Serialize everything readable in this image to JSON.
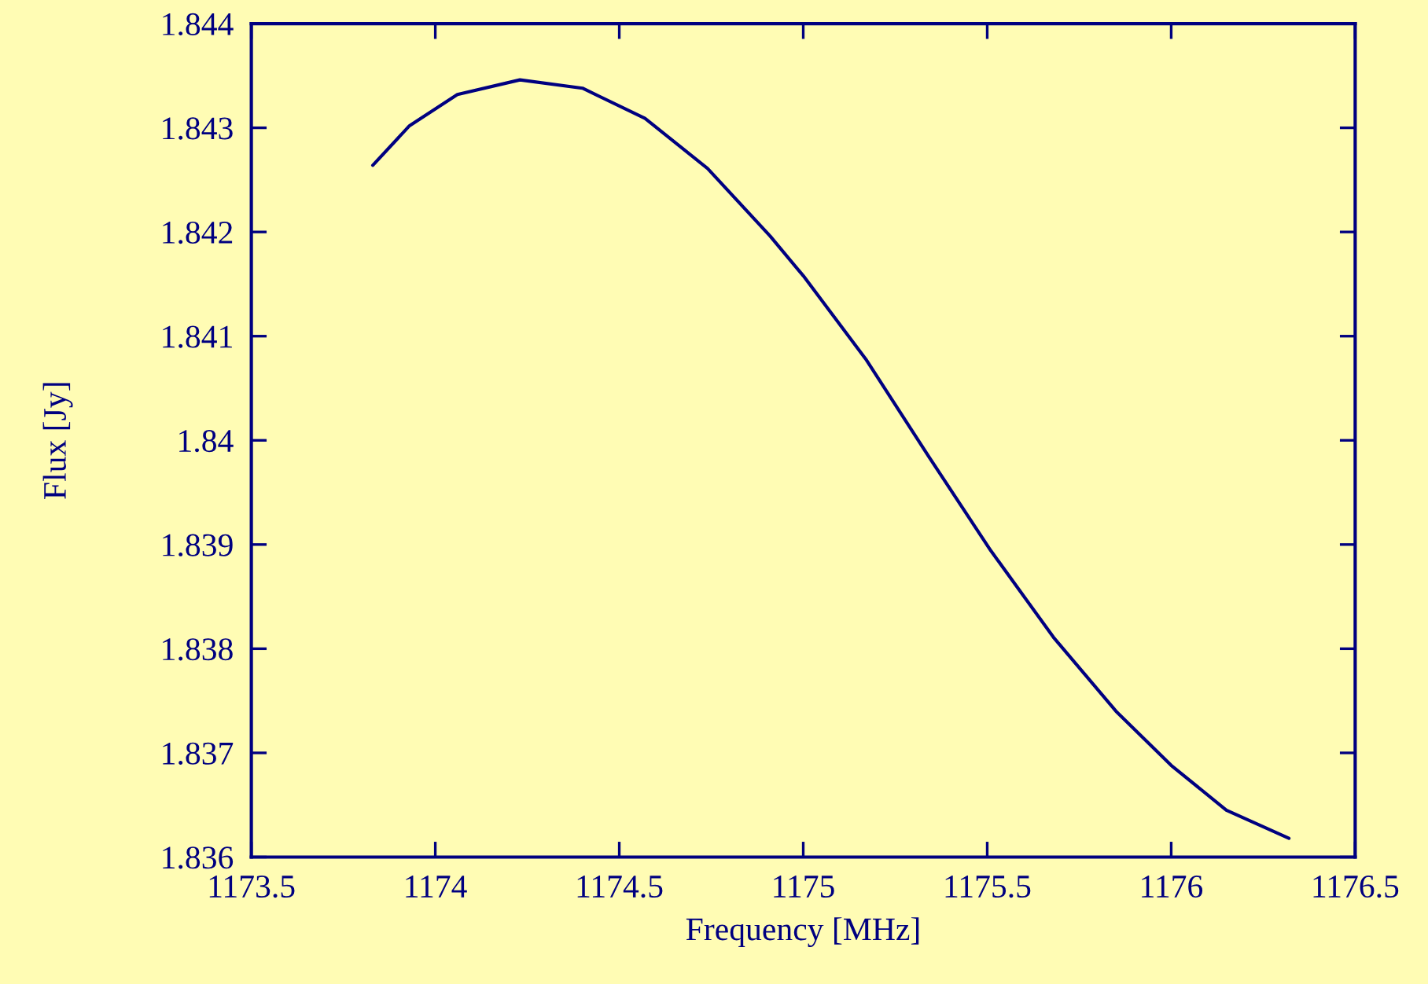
{
  "chart_data": {
    "type": "line",
    "xlabel": "Frequency [MHz]",
    "ylabel": "Flux [Jy]",
    "x": [
      1173.83,
      1173.93,
      1174.06,
      1174.23,
      1174.4,
      1174.57,
      1174.74,
      1174.91,
      1175.0,
      1175.17,
      1175.34,
      1175.51,
      1175.68,
      1175.85,
      1176.0,
      1176.15,
      1176.32
    ],
    "series": [
      {
        "color": "#000080",
        "values": [
          1.84264,
          1.84302,
          1.84332,
          1.84346,
          1.84338,
          1.84309,
          1.84261,
          1.84196,
          1.84158,
          1.84078,
          1.83985,
          1.83894,
          1.83811,
          1.8374,
          1.83688,
          1.83645,
          1.83618
        ]
      }
    ],
    "xlim": [
      1173.5,
      1176.5
    ],
    "xticks": [
      1173.5,
      1174,
      1174.5,
      1175,
      1175.5,
      1176,
      1176.5
    ],
    "ylim": [
      1.836,
      1.844
    ],
    "yticks": [
      1.836,
      1.837,
      1.838,
      1.839,
      1.84,
      1.841,
      1.842,
      1.843,
      1.844
    ],
    "grid": false,
    "marker": "none",
    "line_style": "solid"
  }
}
